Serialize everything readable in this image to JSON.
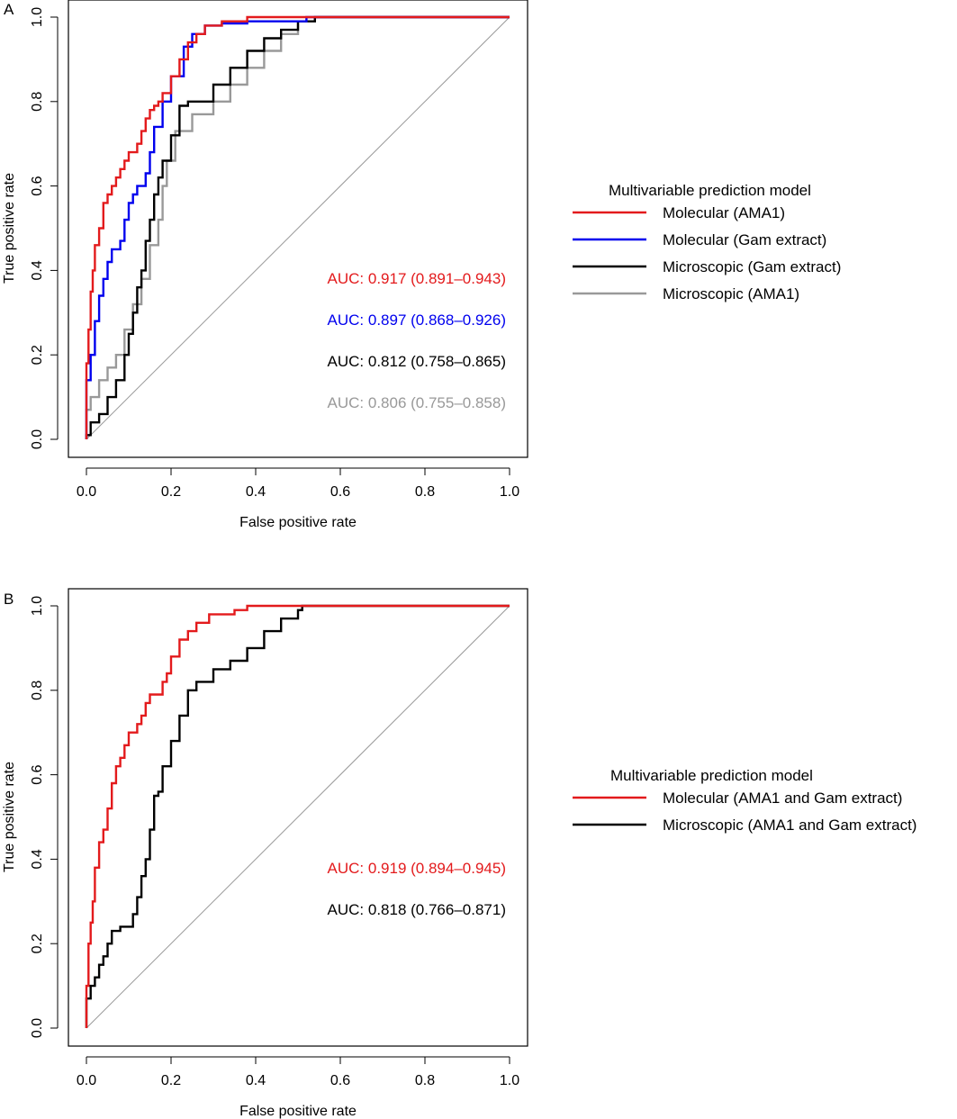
{
  "chart_data": [
    {
      "panel_label": "A",
      "type": "line",
      "xlabel": "False positive rate",
      "ylabel": "True positive rate",
      "xlim": [
        0,
        1
      ],
      "ylim": [
        0,
        1
      ],
      "x_ticks": [
        "0.0",
        "0.2",
        "0.4",
        "0.6",
        "0.8",
        "1.0"
      ],
      "y_ticks": [
        "0.0",
        "0.2",
        "0.4",
        "0.6",
        "0.8",
        "1.0"
      ],
      "grid": false,
      "reference_line": true,
      "legend_title": "Multivariable prediction model",
      "legend_position": "right",
      "series": [
        {
          "name": "Molecular (AMA1)",
          "color": "#e31a1c",
          "auc_label": "AUC: 0.917 (0.891–0.943)",
          "x": [
            0,
            0,
            0.005,
            0.005,
            0.01,
            0.01,
            0.015,
            0.015,
            0.02,
            0.02,
            0.03,
            0.03,
            0.04,
            0.04,
            0.05,
            0.05,
            0.06,
            0.06,
            0.07,
            0.07,
            0.08,
            0.08,
            0.09,
            0.09,
            0.1,
            0.1,
            0.12,
            0.12,
            0.13,
            0.13,
            0.14,
            0.14,
            0.15,
            0.15,
            0.16,
            0.16,
            0.17,
            0.17,
            0.18,
            0.18,
            0.2,
            0.2,
            0.22,
            0.22,
            0.24,
            0.24,
            0.26,
            0.26,
            0.28,
            0.28,
            0.32,
            0.32,
            0.38,
            0.38,
            1.0
          ],
          "y": [
            0,
            0.18,
            0.18,
            0.26,
            0.26,
            0.35,
            0.35,
            0.4,
            0.4,
            0.46,
            0.46,
            0.5,
            0.5,
            0.56,
            0.56,
            0.58,
            0.58,
            0.6,
            0.6,
            0.62,
            0.62,
            0.64,
            0.64,
            0.66,
            0.66,
            0.68,
            0.68,
            0.7,
            0.7,
            0.73,
            0.73,
            0.76,
            0.76,
            0.78,
            0.78,
            0.79,
            0.79,
            0.8,
            0.8,
            0.82,
            0.82,
            0.86,
            0.86,
            0.9,
            0.9,
            0.94,
            0.94,
            0.96,
            0.96,
            0.98,
            0.98,
            0.99,
            0.99,
            1.0,
            1.0
          ]
        },
        {
          "name": "Molecular (Gam extract)",
          "color": "#0000ee",
          "auc_label": "AUC: 0.897 (0.868–0.926)",
          "x": [
            0,
            0,
            0.01,
            0.01,
            0.02,
            0.02,
            0.03,
            0.03,
            0.04,
            0.04,
            0.05,
            0.05,
            0.06,
            0.06,
            0.08,
            0.08,
            0.09,
            0.09,
            0.1,
            0.1,
            0.11,
            0.11,
            0.12,
            0.12,
            0.14,
            0.14,
            0.15,
            0.15,
            0.16,
            0.16,
            0.18,
            0.18,
            0.2,
            0.2,
            0.23,
            0.23,
            0.25,
            0.25,
            0.28,
            0.28,
            0.32,
            0.32,
            0.38,
            0.38,
            0.52,
            0.52,
            0.54,
            0.54,
            1.0
          ],
          "y": [
            0,
            0.14,
            0.14,
            0.2,
            0.2,
            0.28,
            0.28,
            0.34,
            0.34,
            0.38,
            0.38,
            0.42,
            0.42,
            0.45,
            0.45,
            0.47,
            0.47,
            0.52,
            0.52,
            0.56,
            0.56,
            0.58,
            0.58,
            0.6,
            0.6,
            0.63,
            0.63,
            0.68,
            0.68,
            0.74,
            0.74,
            0.8,
            0.8,
            0.86,
            0.86,
            0.93,
            0.93,
            0.96,
            0.96,
            0.98,
            0.98,
            0.985,
            0.985,
            0.99,
            0.99,
            1.0,
            1.0,
            1.0,
            1.0
          ]
        },
        {
          "name": "Microscopic (Gam extract)",
          "color": "#000000",
          "auc_label": "AUC: 0.812 (0.758–0.865)",
          "x": [
            0,
            0,
            0.01,
            0.01,
            0.03,
            0.03,
            0.05,
            0.05,
            0.07,
            0.07,
            0.09,
            0.09,
            0.1,
            0.1,
            0.11,
            0.11,
            0.12,
            0.12,
            0.13,
            0.13,
            0.14,
            0.14,
            0.15,
            0.15,
            0.16,
            0.16,
            0.17,
            0.17,
            0.18,
            0.18,
            0.2,
            0.2,
            0.22,
            0.22,
            0.24,
            0.24,
            0.3,
            0.3,
            0.34,
            0.34,
            0.38,
            0.38,
            0.42,
            0.42,
            0.46,
            0.46,
            0.5,
            0.5,
            0.54,
            0.54,
            1.0
          ],
          "y": [
            0,
            0.01,
            0.01,
            0.04,
            0.04,
            0.06,
            0.06,
            0.1,
            0.1,
            0.14,
            0.14,
            0.2,
            0.2,
            0.25,
            0.25,
            0.3,
            0.3,
            0.36,
            0.36,
            0.4,
            0.4,
            0.47,
            0.47,
            0.52,
            0.52,
            0.58,
            0.58,
            0.62,
            0.62,
            0.66,
            0.66,
            0.72,
            0.72,
            0.79,
            0.79,
            0.8,
            0.8,
            0.84,
            0.84,
            0.88,
            0.88,
            0.92,
            0.92,
            0.95,
            0.95,
            0.97,
            0.97,
            0.99,
            0.99,
            1.0,
            1.0
          ]
        },
        {
          "name": "Microscopic (AMA1)",
          "color": "#999999",
          "auc_label": "AUC: 0.806 (0.755–0.858)",
          "x": [
            0,
            0,
            0.01,
            0.01,
            0.03,
            0.03,
            0.05,
            0.05,
            0.07,
            0.07,
            0.09,
            0.09,
            0.11,
            0.11,
            0.13,
            0.13,
            0.15,
            0.15,
            0.17,
            0.17,
            0.18,
            0.18,
            0.19,
            0.19,
            0.21,
            0.21,
            0.25,
            0.25,
            0.3,
            0.3,
            0.34,
            0.34,
            0.38,
            0.38,
            0.42,
            0.42,
            0.46,
            0.46,
            0.5,
            0.5,
            0.54,
            0.54,
            1.0
          ],
          "y": [
            0,
            0.07,
            0.07,
            0.1,
            0.1,
            0.14,
            0.14,
            0.17,
            0.17,
            0.2,
            0.2,
            0.26,
            0.26,
            0.32,
            0.32,
            0.38,
            0.38,
            0.46,
            0.46,
            0.52,
            0.52,
            0.6,
            0.6,
            0.66,
            0.66,
            0.73,
            0.73,
            0.77,
            0.77,
            0.8,
            0.8,
            0.84,
            0.84,
            0.88,
            0.88,
            0.92,
            0.92,
            0.96,
            0.96,
            0.99,
            0.99,
            1.0,
            1.0
          ]
        }
      ]
    },
    {
      "panel_label": "B",
      "type": "line",
      "xlabel": "False positive rate",
      "ylabel": "True positive rate",
      "xlim": [
        0,
        1
      ],
      "ylim": [
        0,
        1
      ],
      "x_ticks": [
        "0.0",
        "0.2",
        "0.4",
        "0.6",
        "0.8",
        "1.0"
      ],
      "y_ticks": [
        "0.0",
        "0.2",
        "0.4",
        "0.6",
        "0.8",
        "1.0"
      ],
      "grid": false,
      "reference_line": true,
      "legend_title": "Multivariable prediction model",
      "legend_position": "right",
      "series": [
        {
          "name": "Molecular (AMA1 and Gam extract)",
          "color": "#e31a1c",
          "auc_label": "AUC: 0.919 (0.894–0.945)",
          "x": [
            0,
            0,
            0.005,
            0.005,
            0.01,
            0.01,
            0.015,
            0.015,
            0.02,
            0.02,
            0.03,
            0.03,
            0.04,
            0.04,
            0.05,
            0.05,
            0.06,
            0.06,
            0.07,
            0.07,
            0.08,
            0.08,
            0.09,
            0.09,
            0.1,
            0.1,
            0.12,
            0.12,
            0.13,
            0.13,
            0.14,
            0.14,
            0.15,
            0.15,
            0.18,
            0.18,
            0.19,
            0.19,
            0.2,
            0.2,
            0.22,
            0.22,
            0.24,
            0.24,
            0.26,
            0.26,
            0.29,
            0.29,
            0.35,
            0.35,
            0.38,
            0.38,
            1.0
          ],
          "y": [
            0,
            0.1,
            0.1,
            0.2,
            0.2,
            0.25,
            0.25,
            0.3,
            0.3,
            0.38,
            0.38,
            0.44,
            0.44,
            0.47,
            0.47,
            0.52,
            0.52,
            0.58,
            0.58,
            0.62,
            0.62,
            0.64,
            0.64,
            0.67,
            0.67,
            0.7,
            0.7,
            0.72,
            0.72,
            0.74,
            0.74,
            0.77,
            0.77,
            0.79,
            0.79,
            0.82,
            0.82,
            0.84,
            0.84,
            0.88,
            0.88,
            0.92,
            0.92,
            0.94,
            0.94,
            0.96,
            0.96,
            0.98,
            0.98,
            0.99,
            0.99,
            1.0,
            1.0
          ]
        },
        {
          "name": "Microscopic (AMA1 and Gam extract)",
          "color": "#000000",
          "auc_label": "AUC: 0.818 (0.766–0.871)",
          "x": [
            0,
            0,
            0.01,
            0.01,
            0.02,
            0.02,
            0.03,
            0.03,
            0.04,
            0.04,
            0.05,
            0.05,
            0.06,
            0.06,
            0.08,
            0.08,
            0.11,
            0.11,
            0.12,
            0.12,
            0.13,
            0.13,
            0.14,
            0.14,
            0.15,
            0.15,
            0.16,
            0.16,
            0.17,
            0.17,
            0.18,
            0.18,
            0.2,
            0.2,
            0.22,
            0.22,
            0.24,
            0.24,
            0.26,
            0.26,
            0.3,
            0.3,
            0.34,
            0.34,
            0.38,
            0.38,
            0.42,
            0.42,
            0.46,
            0.46,
            0.5,
            0.5,
            0.51,
            0.51,
            1.0
          ],
          "y": [
            0,
            0.07,
            0.07,
            0.1,
            0.1,
            0.12,
            0.12,
            0.15,
            0.15,
            0.17,
            0.17,
            0.2,
            0.2,
            0.23,
            0.23,
            0.24,
            0.24,
            0.27,
            0.27,
            0.31,
            0.31,
            0.36,
            0.36,
            0.4,
            0.4,
            0.47,
            0.47,
            0.55,
            0.55,
            0.56,
            0.56,
            0.62,
            0.62,
            0.68,
            0.68,
            0.74,
            0.74,
            0.8,
            0.8,
            0.82,
            0.82,
            0.85,
            0.85,
            0.87,
            0.87,
            0.9,
            0.9,
            0.94,
            0.94,
            0.97,
            0.97,
            0.99,
            0.99,
            1.0,
            1.0
          ]
        }
      ]
    }
  ]
}
